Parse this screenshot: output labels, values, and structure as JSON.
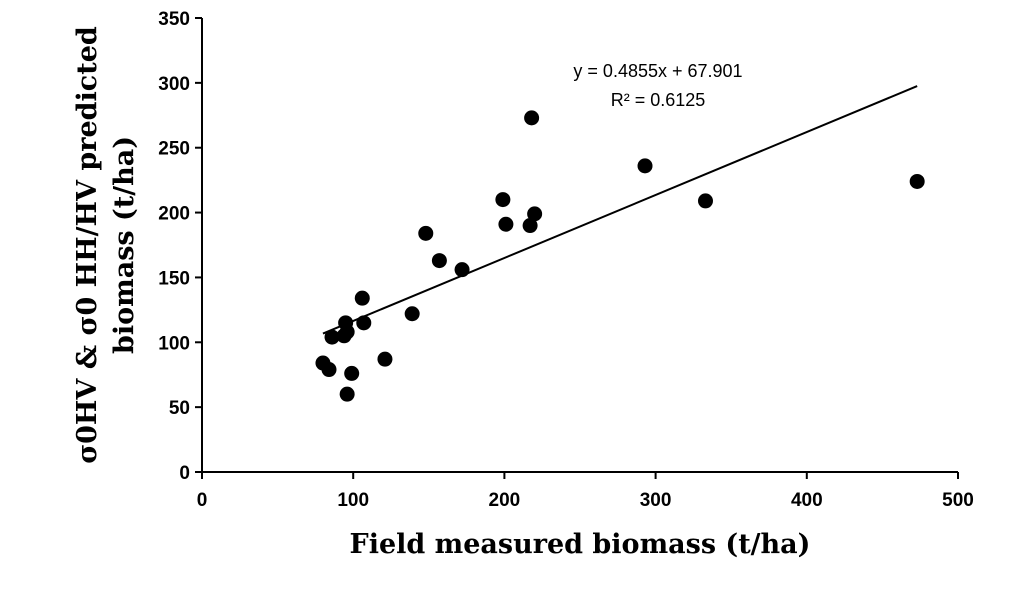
{
  "chart_data": {
    "type": "scatter",
    "title": "",
    "xlabel": "Field measured biomass (t/ha)",
    "ylabel_lines": [
      "σ0HV & σ0 HH/HV predicted",
      "biomass (t/ha)"
    ],
    "xlim": [
      0,
      500
    ],
    "ylim": [
      0,
      350
    ],
    "xticks": [
      0,
      100,
      200,
      300,
      400,
      500
    ],
    "yticks": [
      0,
      50,
      100,
      150,
      200,
      250,
      300,
      350
    ],
    "grid": false,
    "points": [
      {
        "x": 80,
        "y": 84
      },
      {
        "x": 84,
        "y": 79
      },
      {
        "x": 86,
        "y": 104
      },
      {
        "x": 94,
        "y": 105
      },
      {
        "x": 95,
        "y": 115
      },
      {
        "x": 96,
        "y": 108
      },
      {
        "x": 96,
        "y": 60
      },
      {
        "x": 99,
        "y": 76
      },
      {
        "x": 106,
        "y": 134
      },
      {
        "x": 107,
        "y": 115
      },
      {
        "x": 121,
        "y": 87
      },
      {
        "x": 139,
        "y": 122
      },
      {
        "x": 148,
        "y": 184
      },
      {
        "x": 157,
        "y": 163
      },
      {
        "x": 172,
        "y": 156
      },
      {
        "x": 199,
        "y": 210
      },
      {
        "x": 201,
        "y": 191
      },
      {
        "x": 217,
        "y": 190
      },
      {
        "x": 218,
        "y": 273
      },
      {
        "x": 220,
        "y": 199
      },
      {
        "x": 293,
        "y": 236
      },
      {
        "x": 333,
        "y": 209
      },
      {
        "x": 473,
        "y": 224
      }
    ],
    "trendline": {
      "slope": 0.4855,
      "intercept": 67.901,
      "x_range": [
        80,
        473
      ],
      "equation_label": "y = 0.4855x + 67.901",
      "r2_label": "R² = 0.6125"
    },
    "colors": {
      "marker": "#000000",
      "line": "#000000",
      "axis": "#000000"
    }
  }
}
